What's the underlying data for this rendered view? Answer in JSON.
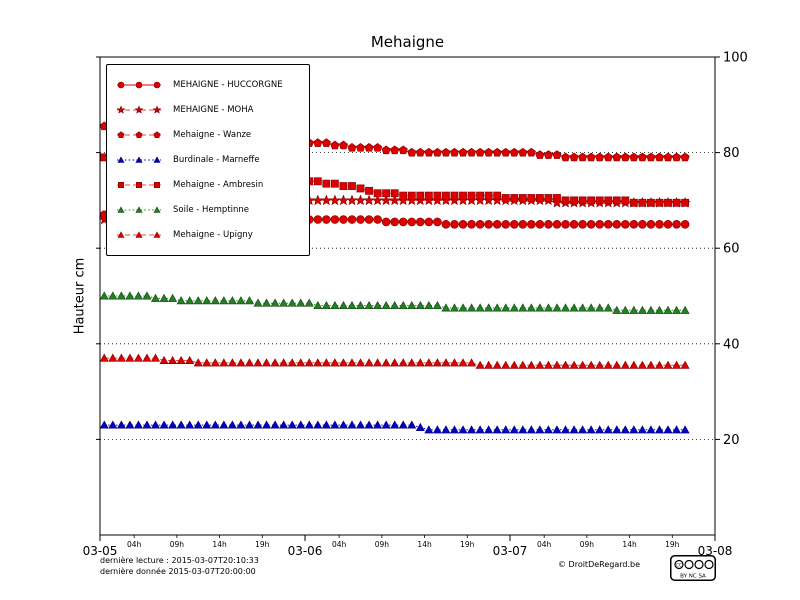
{
  "title": "Mehaigne",
  "ylabel": "Hauteur cm",
  "footer": {
    "last_read": "dernière lecture : 2015-03-07T20:10:33",
    "last_data": "dernière donnée  2015-03-07T20:00:00",
    "copyright": "© DroitDeRegard.be",
    "license_cc": "CC",
    "license_text": "BY NC SA"
  },
  "chart_data": {
    "type": "line",
    "title": "Mehaigne",
    "xlabel": "",
    "ylabel": "Hauteur cm",
    "x_unit": "hours since 2015-03-05T00:00",
    "xlim": [
      0,
      72
    ],
    "ylim": [
      0,
      100
    ],
    "grid": "horizontal dotted lines at y ticks",
    "legend_position": "upper left",
    "y_ticks": [
      {
        "pos": 20,
        "label": "20"
      },
      {
        "pos": 40,
        "label": "40"
      },
      {
        "pos": 60,
        "label": "60"
      },
      {
        "pos": 80,
        "label": "80"
      },
      {
        "pos": 100,
        "label": "100"
      }
    ],
    "x_major_ticks": [
      {
        "pos": 0,
        "label": "03-05"
      },
      {
        "pos": 24,
        "label": "03-06"
      },
      {
        "pos": 48,
        "label": "03-07"
      },
      {
        "pos": 72,
        "label": "03-08"
      }
    ],
    "x_minor_ticks": [
      {
        "pos": 4,
        "label": "04h"
      },
      {
        "pos": 9,
        "label": "09h"
      },
      {
        "pos": 14,
        "label": "14h"
      },
      {
        "pos": 19,
        "label": "19h"
      },
      {
        "pos": 28,
        "label": "04h"
      },
      {
        "pos": 33,
        "label": "09h"
      },
      {
        "pos": 38,
        "label": "14h"
      },
      {
        "pos": 43,
        "label": "19h"
      },
      {
        "pos": 52,
        "label": "04h"
      },
      {
        "pos": 57,
        "label": "09h"
      },
      {
        "pos": 62,
        "label": "14h"
      },
      {
        "pos": 67,
        "label": "19h"
      }
    ],
    "series": [
      {
        "name": "MEHAIGNE - HUCCORGNE",
        "color": "#dd0000",
        "edge_color": "#7f0000",
        "line_color": "#dd0000",
        "marker": "circle",
        "linestyle": "solid",
        "x_start": 0.5,
        "x_step": 1,
        "values": [
          67,
          67,
          67,
          66.5,
          66.5,
          66.5,
          66.5,
          66.5,
          66.5,
          66,
          66,
          66,
          66,
          66,
          66,
          66,
          66,
          66,
          66,
          66,
          66,
          66,
          66,
          66,
          66,
          66,
          66,
          66,
          66,
          66,
          66,
          66,
          66,
          65.5,
          65.5,
          65.5,
          65.5,
          65.5,
          65.5,
          65.5,
          65,
          65,
          65,
          65,
          65,
          65,
          65,
          65,
          65,
          65,
          65,
          65,
          65,
          65,
          65,
          65,
          65,
          65,
          65,
          65,
          65,
          65,
          65,
          65,
          65,
          65,
          65,
          65,
          65
        ]
      },
      {
        "name": "MEHAIGNE - MOHA",
        "color": "#dd0000",
        "edge_color": "#7f0000",
        "line_color": "#ee4444",
        "marker": "star",
        "linestyle": "dashed",
        "x_start": 0.5,
        "x_step": 1,
        "values": [
          66,
          66.5,
          67,
          67.5,
          68,
          68,
          68.5,
          68.5,
          69,
          69,
          69,
          69.5,
          69.5,
          69.5,
          69.5,
          70,
          70,
          70,
          70,
          70,
          70,
          70,
          70,
          70,
          70,
          70,
          70,
          70,
          70,
          70,
          70,
          70,
          70,
          70,
          70,
          70,
          70,
          70,
          70,
          70,
          70,
          70,
          70,
          70,
          70,
          70,
          70,
          70,
          70,
          70,
          70,
          70,
          70,
          69.5,
          69.5,
          69.5,
          69.5,
          69.5,
          69.5,
          69.5,
          69.5,
          69.5,
          69.5,
          69.5,
          69.5,
          69.5,
          69.5,
          69.5,
          69.5
        ]
      },
      {
        "name": "Mehaigne - Wanze",
        "color": "#dd0000",
        "edge_color": "#7f0000",
        "line_color": "#ee4444",
        "marker": "pentagon",
        "linestyle": "dashed",
        "x_start": 0.5,
        "x_step": 1,
        "values": [
          85.5,
          85.5,
          85,
          85,
          84.5,
          84.5,
          84,
          84,
          83.5,
          83.5,
          83.5,
          83,
          83,
          83,
          82.5,
          82.5,
          82.5,
          82,
          82,
          82,
          82,
          82,
          82,
          82,
          82,
          82,
          82,
          81.5,
          81.5,
          81,
          81,
          81,
          81,
          80.5,
          80.5,
          80.5,
          80,
          80,
          80,
          80,
          80,
          80,
          80,
          80,
          80,
          80,
          80,
          80,
          80,
          80,
          80,
          79.5,
          79.5,
          79.5,
          79,
          79,
          79,
          79,
          79,
          79,
          79,
          79,
          79,
          79,
          79,
          79,
          79,
          79,
          79
        ]
      },
      {
        "name": "Burdinale - Marneffe",
        "color": "#0000cc",
        "edge_color": "#000066",
        "line_color": "#0000cc",
        "marker": "triangle",
        "linestyle": "dotted",
        "x_start": 0.5,
        "x_step": 1,
        "values": [
          23,
          23,
          23,
          23,
          23,
          23,
          23,
          23,
          23,
          23,
          23,
          23,
          23,
          23,
          23,
          23,
          23,
          23,
          23,
          23,
          23,
          23,
          23,
          23,
          23,
          23,
          23,
          23,
          23,
          23,
          23,
          23,
          23,
          23,
          23,
          23,
          23,
          22.5,
          22,
          22,
          22,
          22,
          22,
          22,
          22,
          22,
          22,
          22,
          22,
          22,
          22,
          22,
          22,
          22,
          22,
          22,
          22,
          22,
          22,
          22,
          22,
          22,
          22,
          22,
          22,
          22,
          22,
          22,
          22
        ]
      },
      {
        "name": "Mehaigne - Ambresin",
        "color": "#dd0000",
        "edge_color": "#7f0000",
        "line_color": "#ee4444",
        "marker": "square",
        "linestyle": "dashed",
        "x_start": 0.5,
        "x_step": 1,
        "values": [
          79,
          78.5,
          78,
          78,
          77.5,
          77,
          77,
          76.5,
          76,
          76,
          75.5,
          75.5,
          75,
          75,
          74.5,
          74.5,
          74,
          74,
          74,
          74,
          74,
          74,
          74,
          74,
          74,
          74,
          73.5,
          73.5,
          73,
          73,
          72.5,
          72,
          71.5,
          71.5,
          71.5,
          71,
          71,
          71,
          71,
          71,
          71,
          71,
          71,
          71,
          71,
          71,
          71,
          70.5,
          70.5,
          70.5,
          70.5,
          70.5,
          70.5,
          70.5,
          70,
          70,
          70,
          70,
          70,
          70,
          70,
          70,
          69.5,
          69.5,
          69.5,
          69.5,
          69.5,
          69.5,
          69.5
        ]
      },
      {
        "name": "Soile - Hemptinne",
        "color": "#228022",
        "edge_color": "#114411",
        "line_color": "#228022",
        "marker": "triangle",
        "linestyle": "dotted",
        "x_start": 0.5,
        "x_step": 1,
        "values": [
          50,
          50,
          50,
          50,
          50,
          50,
          49.5,
          49.5,
          49.5,
          49,
          49,
          49,
          49,
          49,
          49,
          49,
          49,
          49,
          48.5,
          48.5,
          48.5,
          48.5,
          48.5,
          48.5,
          48.5,
          48,
          48,
          48,
          48,
          48,
          48,
          48,
          48,
          48,
          48,
          48,
          48,
          48,
          48,
          48,
          47.5,
          47.5,
          47.5,
          47.5,
          47.5,
          47.5,
          47.5,
          47.5,
          47.5,
          47.5,
          47.5,
          47.5,
          47.5,
          47.5,
          47.5,
          47.5,
          47.5,
          47.5,
          47.5,
          47.5,
          47,
          47,
          47,
          47,
          47,
          47,
          47,
          47,
          47
        ]
      },
      {
        "name": "Mehaigne - Upigny",
        "color": "#dd0000",
        "edge_color": "#7f0000",
        "line_color": "#ee4444",
        "marker": "triangle",
        "linestyle": "dashed",
        "x_start": 0.5,
        "x_step": 1,
        "values": [
          37,
          37,
          37,
          37,
          37,
          37,
          37,
          36.5,
          36.5,
          36.5,
          36.5,
          36,
          36,
          36,
          36,
          36,
          36,
          36,
          36,
          36,
          36,
          36,
          36,
          36,
          36,
          36,
          36,
          36,
          36,
          36,
          36,
          36,
          36,
          36,
          36,
          36,
          36,
          36,
          36,
          36,
          36,
          36,
          36,
          36,
          35.5,
          35.5,
          35.5,
          35.5,
          35.5,
          35.5,
          35.5,
          35.5,
          35.5,
          35.5,
          35.5,
          35.5,
          35.5,
          35.5,
          35.5,
          35.5,
          35.5,
          35.5,
          35.5,
          35.5,
          35.5,
          35.5,
          35.5,
          35.5,
          35.5
        ]
      }
    ]
  }
}
